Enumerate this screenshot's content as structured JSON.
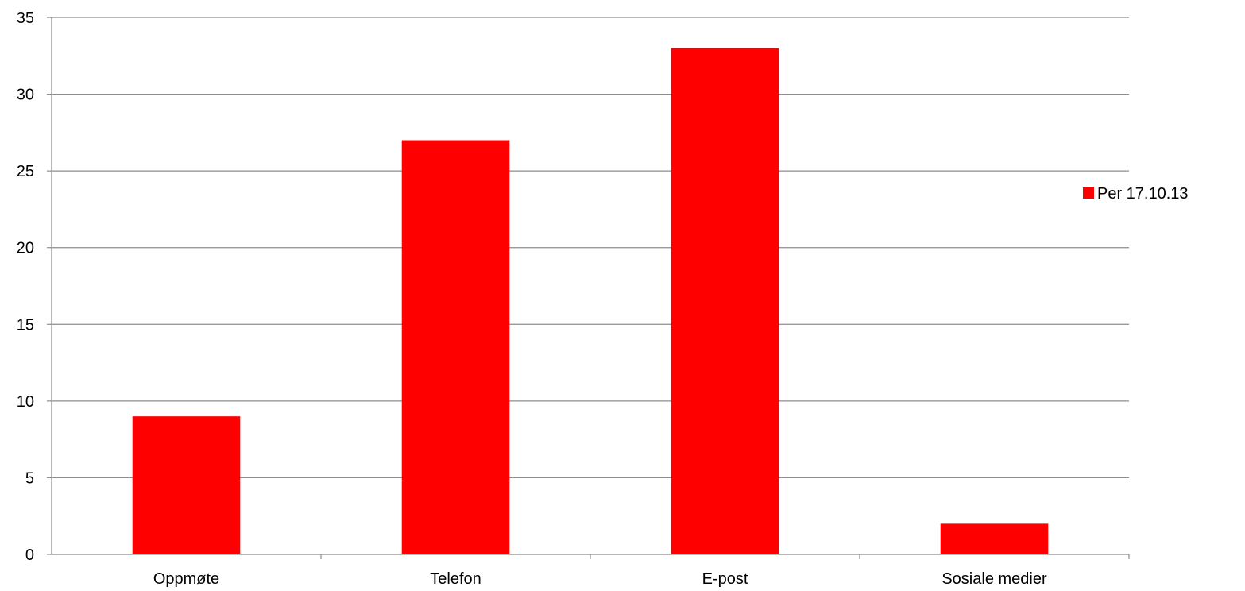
{
  "chart_data": {
    "type": "bar",
    "categories": [
      "Oppmøte",
      "Telefon",
      "E-post",
      "Sosiale medier"
    ],
    "series": [
      {
        "name": "Per 17.10.13",
        "values": [
          9,
          27,
          33,
          2
        ],
        "color": "#ff0000"
      }
    ],
    "ylim": [
      0,
      35
    ],
    "yticks": [
      0,
      5,
      10,
      15,
      20,
      25,
      30,
      35
    ],
    "grid": true,
    "legend": "right"
  }
}
